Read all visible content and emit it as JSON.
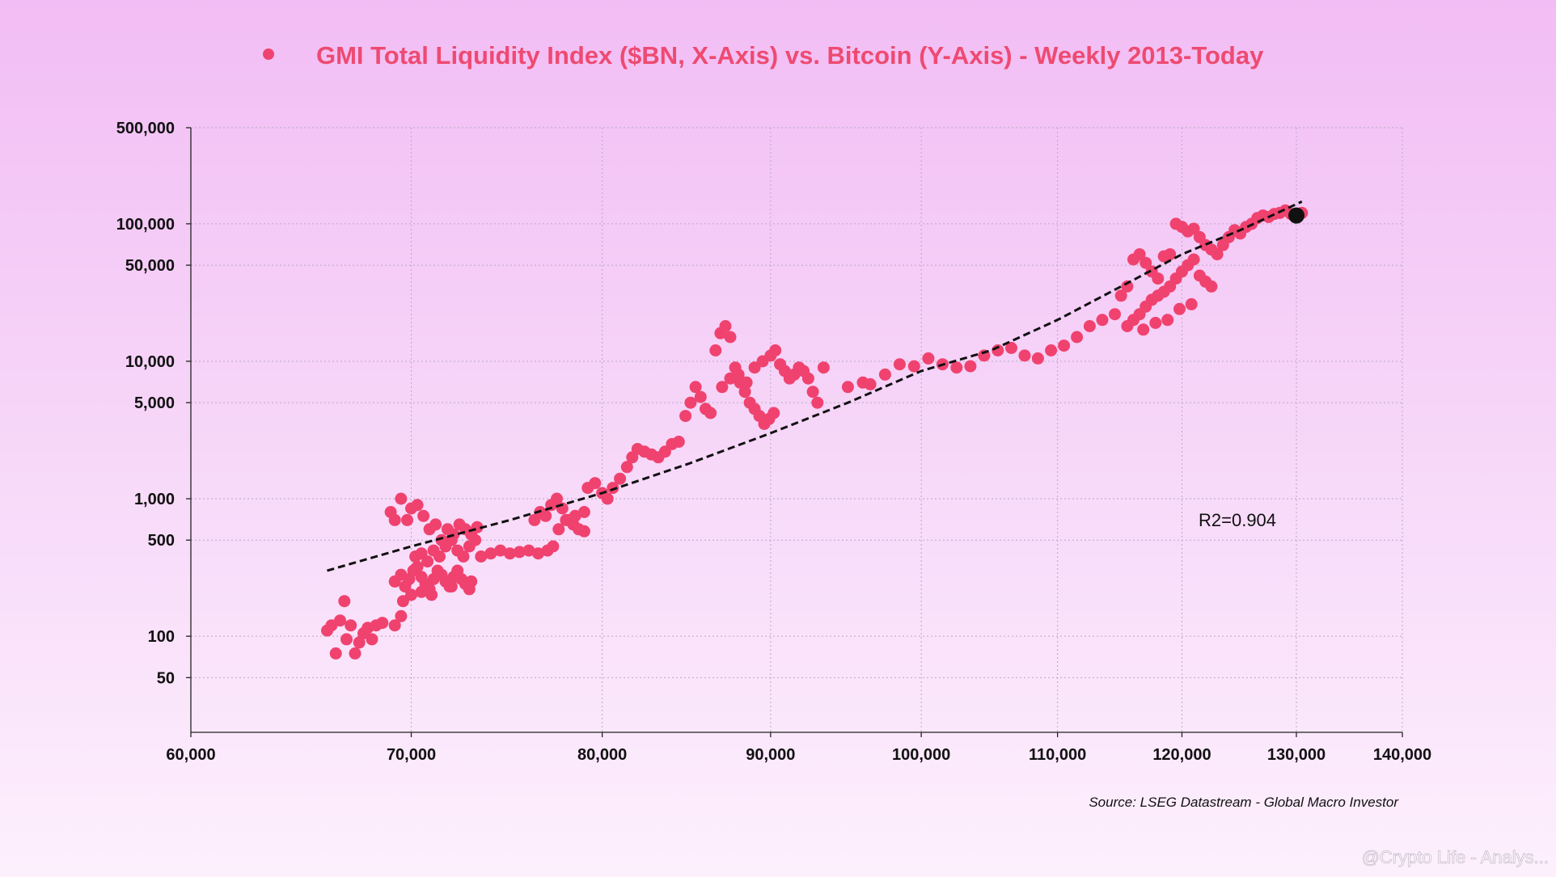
{
  "chart_data": {
    "type": "scatter",
    "title": "GMI Total Liquidity Index ($BN, X-Axis) vs. Bitcoin (Y-Axis) - Weekly 2013-Today",
    "xlabel": "",
    "ylabel": "",
    "x_scale": "log",
    "y_scale": "log",
    "xlim": [
      60000,
      140000
    ],
    "ylim": [
      20,
      500000
    ],
    "x_ticks": [
      60000,
      70000,
      80000,
      90000,
      100000,
      110000,
      120000,
      130000,
      140000
    ],
    "x_tick_labels": [
      "60,000",
      "70,000",
      "80,000",
      "90,000",
      "100,000",
      "110,000",
      "120,000",
      "130,000",
      "140,000"
    ],
    "y_ticks": [
      50,
      100,
      500,
      1000,
      5000,
      10000,
      50000,
      100000,
      500000
    ],
    "y_tick_labels": [
      "50",
      "100",
      "500",
      "1,000",
      "5,000",
      "10,000",
      "50,000",
      "100,000",
      "500,000"
    ],
    "grid": true,
    "legend_position": "top-center",
    "colors": {
      "points": "#f0426f",
      "trend": "#111111",
      "latest": "#111111",
      "title": "#ee4a72"
    },
    "series": [
      {
        "name": "",
        "points": [
          [
            66000,
            110
          ],
          [
            66200,
            120
          ],
          [
            66400,
            75
          ],
          [
            66600,
            130
          ],
          [
            66800,
            180
          ],
          [
            66900,
            95
          ],
          [
            67100,
            120
          ],
          [
            67300,
            75
          ],
          [
            67500,
            90
          ],
          [
            67700,
            105
          ],
          [
            67900,
            115
          ],
          [
            68100,
            95
          ],
          [
            68300,
            120
          ],
          [
            68600,
            125
          ],
          [
            69200,
            120
          ],
          [
            69500,
            140
          ],
          [
            69000,
            800
          ],
          [
            69200,
            700
          ],
          [
            69500,
            1000
          ],
          [
            69800,
            700
          ],
          [
            70000,
            850
          ],
          [
            70300,
            900
          ],
          [
            70600,
            750
          ],
          [
            70900,
            600
          ],
          [
            71200,
            650
          ],
          [
            71500,
            500
          ],
          [
            69200,
            250
          ],
          [
            69500,
            280
          ],
          [
            69700,
            230
          ],
          [
            69900,
            260
          ],
          [
            70100,
            300
          ],
          [
            70300,
            320
          ],
          [
            70500,
            270
          ],
          [
            70700,
            240
          ],
          [
            70900,
            220
          ],
          [
            71100,
            260
          ],
          [
            71300,
            300
          ],
          [
            71500,
            280
          ],
          [
            71700,
            250
          ],
          [
            71900,
            230
          ],
          [
            72100,
            270
          ],
          [
            72300,
            300
          ],
          [
            72500,
            260
          ],
          [
            72700,
            240
          ],
          [
            72900,
            220
          ],
          [
            70200,
            380
          ],
          [
            70500,
            400
          ],
          [
            70800,
            350
          ],
          [
            71100,
            420
          ],
          [
            71400,
            380
          ],
          [
            71700,
            450
          ],
          [
            72000,
            500
          ],
          [
            72300,
            420
          ],
          [
            72600,
            380
          ],
          [
            72900,
            450
          ],
          [
            73200,
            500
          ],
          [
            71800,
            600
          ],
          [
            72100,
            550
          ],
          [
            72400,
            650
          ],
          [
            72700,
            600
          ],
          [
            73000,
            550
          ],
          [
            73300,
            620
          ],
          [
            69600,
            180
          ],
          [
            70000,
            200
          ],
          [
            70500,
            210
          ],
          [
            71000,
            200
          ],
          [
            72000,
            230
          ],
          [
            73000,
            250
          ],
          [
            73500,
            380
          ],
          [
            74000,
            400
          ],
          [
            74500,
            420
          ],
          [
            75000,
            400
          ],
          [
            75500,
            410
          ],
          [
            76000,
            420
          ],
          [
            76300,
            700
          ],
          [
            76600,
            800
          ],
          [
            76900,
            750
          ],
          [
            77200,
            900
          ],
          [
            77500,
            1000
          ],
          [
            77800,
            850
          ],
          [
            78100,
            700
          ],
          [
            78400,
            650
          ],
          [
            78700,
            600
          ],
          [
            79000,
            580
          ],
          [
            76500,
            400
          ],
          [
            77000,
            420
          ],
          [
            77300,
            450
          ],
          [
            77600,
            600
          ],
          [
            78000,
            700
          ],
          [
            78500,
            750
          ],
          [
            79000,
            800
          ],
          [
            79200,
            1200
          ],
          [
            79600,
            1300
          ],
          [
            80000,
            1100
          ],
          [
            80300,
            1000
          ],
          [
            80600,
            1200
          ],
          [
            81000,
            1400
          ],
          [
            81400,
            1700
          ],
          [
            81700,
            2000
          ],
          [
            82000,
            2300
          ],
          [
            82400,
            2200
          ],
          [
            82800,
            2100
          ],
          [
            83200,
            2000
          ],
          [
            83600,
            2200
          ],
          [
            84000,
            2500
          ],
          [
            84400,
            2600
          ],
          [
            84800,
            4000
          ],
          [
            85100,
            5000
          ],
          [
            85400,
            6500
          ],
          [
            85700,
            5500
          ],
          [
            86000,
            4500
          ],
          [
            86300,
            4200
          ],
          [
            86600,
            12000
          ],
          [
            86900,
            16000
          ],
          [
            87200,
            18000
          ],
          [
            87500,
            15000
          ],
          [
            87800,
            9000
          ],
          [
            88100,
            7000
          ],
          [
            88400,
            6000
          ],
          [
            88700,
            5000
          ],
          [
            89000,
            4500
          ],
          [
            89300,
            4000
          ],
          [
            89600,
            3500
          ],
          [
            89900,
            3800
          ],
          [
            90200,
            4200
          ],
          [
            87000,
            6500
          ],
          [
            87500,
            7500
          ],
          [
            88000,
            8000
          ],
          [
            88500,
            7000
          ],
          [
            89000,
            9000
          ],
          [
            89500,
            10000
          ],
          [
            90000,
            11000
          ],
          [
            90300,
            12000
          ],
          [
            90600,
            9500
          ],
          [
            90900,
            8500
          ],
          [
            91200,
            7500
          ],
          [
            91500,
            8000
          ],
          [
            91800,
            9000
          ],
          [
            92100,
            8500
          ],
          [
            92400,
            7500
          ],
          [
            92700,
            6000
          ],
          [
            93000,
            5000
          ],
          [
            93400,
            9000
          ],
          [
            95000,
            6500
          ],
          [
            96000,
            7000
          ],
          [
            96500,
            6800
          ],
          [
            97500,
            8000
          ],
          [
            98500,
            9500
          ],
          [
            99500,
            9200
          ],
          [
            100500,
            10500
          ],
          [
            101500,
            9500
          ],
          [
            102500,
            9000
          ],
          [
            103500,
            9200
          ],
          [
            104500,
            11000
          ],
          [
            105500,
            12000
          ],
          [
            106500,
            12500
          ],
          [
            107500,
            11000
          ],
          [
            108500,
            10500
          ],
          [
            109500,
            12000
          ],
          [
            110500,
            13000
          ],
          [
            111500,
            15000
          ],
          [
            112500,
            18000
          ],
          [
            113500,
            20000
          ],
          [
            114500,
            22000
          ],
          [
            115000,
            30000
          ],
          [
            115500,
            35000
          ],
          [
            116000,
            55000
          ],
          [
            116500,
            60000
          ],
          [
            117000,
            52000
          ],
          [
            117500,
            45000
          ],
          [
            118000,
            40000
          ],
          [
            118500,
            58000
          ],
          [
            119000,
            60000
          ],
          [
            119500,
            100000
          ],
          [
            120000,
            95000
          ],
          [
            120500,
            88000
          ],
          [
            121000,
            92000
          ],
          [
            121500,
            80000
          ],
          [
            122000,
            70000
          ],
          [
            122500,
            65000
          ],
          [
            123000,
            60000
          ],
          [
            123500,
            70000
          ],
          [
            124000,
            80000
          ],
          [
            124500,
            90000
          ],
          [
            115500,
            18000
          ],
          [
            116000,
            20000
          ],
          [
            116500,
            22000
          ],
          [
            117000,
            25000
          ],
          [
            117500,
            28000
          ],
          [
            118000,
            30000
          ],
          [
            118500,
            32000
          ],
          [
            119000,
            35000
          ],
          [
            119500,
            40000
          ],
          [
            120000,
            45000
          ],
          [
            120500,
            50000
          ],
          [
            121000,
            55000
          ],
          [
            121500,
            42000
          ],
          [
            122000,
            38000
          ],
          [
            122500,
            35000
          ],
          [
            116800,
            17000
          ],
          [
            117800,
            19000
          ],
          [
            118800,
            20000
          ],
          [
            119800,
            24000
          ],
          [
            120800,
            26000
          ],
          [
            125000,
            85000
          ],
          [
            125500,
            95000
          ],
          [
            126000,
            100000
          ],
          [
            126500,
            110000
          ],
          [
            127000,
            115000
          ],
          [
            127500,
            112000
          ],
          [
            128000,
            118000
          ],
          [
            128500,
            120000
          ],
          [
            129000,
            125000
          ],
          [
            129500,
            118000
          ],
          [
            130000,
            115000
          ],
          [
            130500,
            120000
          ]
        ]
      }
    ],
    "trendline": {
      "type": "exponential fit",
      "points": [
        [
          66000,
          300
        ],
        [
          70000,
          450
        ],
        [
          75000,
          700
        ],
        [
          80000,
          1100
        ],
        [
          85000,
          1800
        ],
        [
          90000,
          3000
        ],
        [
          95000,
          5000
        ],
        [
          100000,
          8500
        ],
        [
          105000,
          12000
        ],
        [
          110000,
          20000
        ],
        [
          115000,
          35000
        ],
        [
          120000,
          60000
        ],
        [
          125000,
          90000
        ],
        [
          130500,
          145000
        ]
      ]
    },
    "latest_point": [
      130000,
      115000
    ],
    "annotations": [
      "R2=0.904"
    ],
    "source": "Source: LSEG Datastream - Global Macro Investor"
  },
  "watermark": "@Crypto Life - Analys..."
}
